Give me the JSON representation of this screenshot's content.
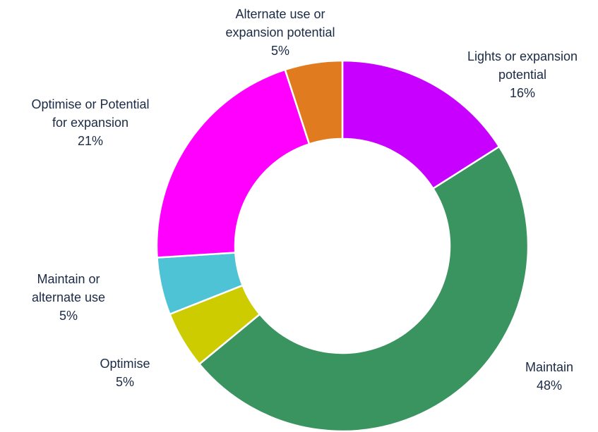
{
  "chart_data": {
    "type": "pie",
    "variant": "donut",
    "title": "",
    "slices": [
      {
        "label_lines": [
          "Lights or expansion",
          "potential"
        ],
        "value": 16,
        "value_label": "16%",
        "color": "#c800ff"
      },
      {
        "label_lines": [
          "Maintain"
        ],
        "value": 48,
        "value_label": "48%",
        "color": "#3a9460"
      },
      {
        "label_lines": [
          "Optimise"
        ],
        "value": 5,
        "value_label": "5%",
        "color": "#cccc00"
      },
      {
        "label_lines": [
          "Maintain or",
          "alternate use"
        ],
        "value": 5,
        "value_label": "5%",
        "color": "#4fc3d6"
      },
      {
        "label_lines": [
          "Optimise or Potential",
          "for expansion"
        ],
        "value": 21,
        "value_label": "21%",
        "color": "#ff00ff"
      },
      {
        "label_lines": [
          "Alternate use or",
          "expansion potential"
        ],
        "value": 5,
        "value_label": "5%",
        "color": "#e07b20"
      }
    ],
    "legend": "none",
    "start_angle": "12 o'clock",
    "direction": "clockwise"
  }
}
